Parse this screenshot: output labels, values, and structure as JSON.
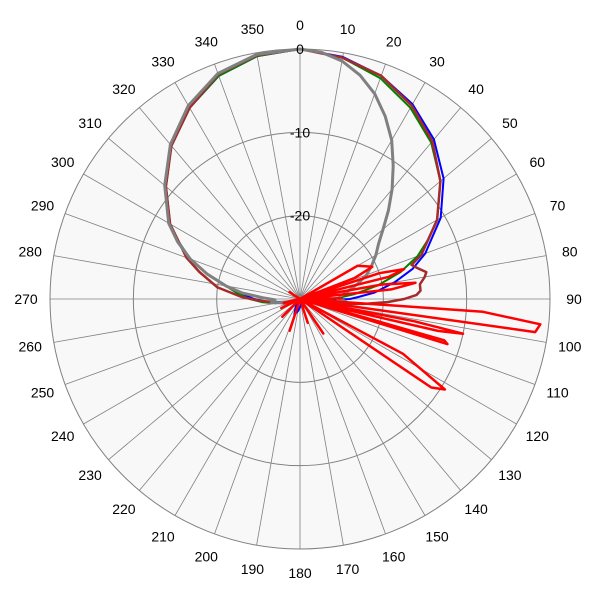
{
  "chart_data": {
    "type": "polar-line",
    "title": "",
    "angle_unit": "degrees",
    "angle_direction": "clockwise",
    "angle_zero": "top",
    "radial_unit": "dB",
    "radial_range": [
      -30,
      0
    ],
    "radial_ticks": [
      {
        "value": -10,
        "label": "-10"
      },
      {
        "value": -20,
        "label": "-20"
      },
      {
        "value": 0,
        "label": "0"
      }
    ],
    "angle_ticks": [
      "0",
      "10",
      "20",
      "30",
      "40",
      "50",
      "60",
      "70",
      "80",
      "90",
      "100",
      "110",
      "120",
      "130",
      "140",
      "150",
      "160",
      "170",
      "180",
      "190",
      "200",
      "210",
      "220",
      "230",
      "240",
      "250",
      "260",
      "270",
      "280",
      "290",
      "300",
      "310",
      "320",
      "330",
      "340",
      "350"
    ],
    "grid": true,
    "legend": "none",
    "colors": {
      "background": "#ffffff",
      "plot_fill": "#f8f8f8",
      "grid": "#808080"
    },
    "series": [
      {
        "color": "#0000ff",
        "width": 2,
        "points": [
          [
            0,
            0
          ],
          [
            10,
            -0.5
          ],
          [
            20,
            -1.5
          ],
          [
            30,
            -3
          ],
          [
            40,
            -5
          ],
          [
            50,
            -7.5
          ],
          [
            60,
            -10.5
          ],
          [
            65,
            -12.5
          ],
          [
            70,
            -14
          ],
          [
            75,
            -16
          ],
          [
            80,
            -18.5
          ],
          [
            85,
            -21
          ],
          [
            88,
            -23
          ],
          [
            90,
            -24
          ],
          [
            93,
            -27
          ],
          [
            95,
            -29
          ],
          [
            100,
            -29.5
          ],
          [
            110,
            -29.5
          ],
          [
            130,
            -29.8
          ],
          [
            160,
            -29.5
          ],
          [
            180,
            -29
          ],
          [
            190,
            -28.5
          ],
          [
            200,
            -28
          ],
          [
            210,
            -29
          ],
          [
            220,
            -29.3
          ],
          [
            240,
            -29.5
          ],
          [
            250,
            -29
          ],
          [
            260,
            -28
          ],
          [
            265,
            -26
          ],
          [
            270,
            -24.5
          ],
          [
            275,
            -23
          ],
          [
            280,
            -21
          ],
          [
            285,
            -18.5
          ],
          [
            290,
            -16
          ],
          [
            295,
            -14
          ],
          [
            300,
            -12
          ],
          [
            310,
            -9
          ],
          [
            320,
            -6
          ],
          [
            330,
            -3.5
          ],
          [
            340,
            -1.5
          ],
          [
            350,
            -0.4
          ],
          [
            360,
            0
          ]
        ]
      },
      {
        "color": "#008000",
        "width": 2,
        "points": [
          [
            0,
            0
          ],
          [
            10,
            -0.6
          ],
          [
            20,
            -1.8
          ],
          [
            30,
            -3.5
          ],
          [
            40,
            -5.5
          ],
          [
            50,
            -8
          ],
          [
            60,
            -11
          ],
          [
            65,
            -13
          ],
          [
            70,
            -15
          ],
          [
            75,
            -17.5
          ],
          [
            80,
            -20.5
          ],
          [
            85,
            -23.5
          ],
          [
            90,
            -26
          ],
          [
            95,
            -28
          ],
          [
            100,
            -29
          ],
          [
            120,
            -29.5
          ],
          [
            160,
            -29.8
          ],
          [
            200,
            -29.6
          ],
          [
            240,
            -29.5
          ],
          [
            255,
            -28.5
          ],
          [
            260,
            -27
          ],
          [
            265,
            -25.5
          ],
          [
            270,
            -24
          ],
          [
            275,
            -22.5
          ],
          [
            280,
            -21
          ],
          [
            285,
            -18.5
          ],
          [
            290,
            -16
          ],
          [
            295,
            -14
          ],
          [
            300,
            -12
          ],
          [
            310,
            -9
          ],
          [
            320,
            -6
          ],
          [
            330,
            -3.5
          ],
          [
            340,
            -1.5
          ],
          [
            350,
            -0.4
          ],
          [
            360,
            0
          ]
        ]
      },
      {
        "color": "#a52a2a",
        "width": 2.5,
        "points": [
          [
            0,
            0
          ],
          [
            10,
            -0.6
          ],
          [
            20,
            -1.5
          ],
          [
            30,
            -3.2
          ],
          [
            40,
            -5.3
          ],
          [
            50,
            -8
          ],
          [
            60,
            -11
          ],
          [
            65,
            -13
          ],
          [
            70,
            -14.5
          ],
          [
            73,
            -16
          ],
          [
            75,
            -15.5
          ],
          [
            78,
            -14.5
          ],
          [
            80,
            -14.8
          ],
          [
            83,
            -15.5
          ],
          [
            86,
            -15.5
          ],
          [
            88,
            -16
          ],
          [
            90,
            -17.5
          ],
          [
            92,
            -19.5
          ],
          [
            94,
            -22
          ],
          [
            97,
            -25
          ],
          [
            100,
            -27.5
          ],
          [
            110,
            -29
          ],
          [
            140,
            -29.5
          ],
          [
            200,
            -29.6
          ],
          [
            240,
            -29.3
          ],
          [
            255,
            -28
          ],
          [
            262,
            -27
          ],
          [
            268,
            -25
          ],
          [
            272,
            -23
          ],
          [
            278,
            -20
          ],
          [
            285,
            -17.5
          ],
          [
            290,
            -15.5
          ],
          [
            300,
            -12
          ],
          [
            310,
            -9
          ],
          [
            320,
            -6
          ],
          [
            330,
            -3.5
          ],
          [
            340,
            -1.3
          ],
          [
            350,
            -0.3
          ],
          [
            360,
            0
          ]
        ]
      },
      {
        "color": "#808080",
        "width": 3,
        "points": [
          [
            0,
            0
          ],
          [
            5,
            -0.3
          ],
          [
            10,
            -1
          ],
          [
            15,
            -2.2
          ],
          [
            20,
            -3.8
          ],
          [
            25,
            -5.8
          ],
          [
            30,
            -8
          ],
          [
            35,
            -10.5
          ],
          [
            40,
            -12.8
          ],
          [
            45,
            -15
          ],
          [
            50,
            -17
          ],
          [
            55,
            -18.5
          ],
          [
            60,
            -19.5
          ],
          [
            65,
            -20.5
          ],
          [
            70,
            -21.5
          ],
          [
            75,
            -22.8
          ],
          [
            80,
            -24
          ],
          [
            85,
            -25
          ],
          [
            90,
            -25.5
          ],
          [
            93,
            -24.5
          ],
          [
            96,
            -26.5
          ],
          [
            100,
            -28.5
          ],
          [
            110,
            -29.5
          ],
          [
            150,
            -29.8
          ],
          [
            220,
            -29.8
          ],
          [
            255,
            -29
          ],
          [
            260,
            -27.5
          ],
          [
            263,
            -26.5
          ],
          [
            268,
            -27
          ],
          [
            272,
            -25.5
          ],
          [
            276,
            -23
          ],
          [
            280,
            -21
          ],
          [
            285,
            -18.5
          ],
          [
            290,
            -16
          ],
          [
            295,
            -13.8
          ],
          [
            300,
            -11.8
          ],
          [
            310,
            -8.8
          ],
          [
            320,
            -5.8
          ],
          [
            330,
            -3.2
          ],
          [
            340,
            -1.2
          ],
          [
            350,
            -0.2
          ],
          [
            360,
            0
          ]
        ]
      },
      {
        "color": "#ff0000",
        "width": 2.5,
        "points": [
          [
            40,
            -30
          ],
          [
            60,
            -22
          ],
          [
            66,
            -20.5
          ],
          [
            69,
            -23
          ],
          [
            70,
            -30
          ],
          [
            72,
            -20
          ],
          [
            74,
            -17
          ],
          [
            76,
            -19
          ],
          [
            78,
            -30
          ],
          [
            80,
            -20
          ],
          [
            82,
            -16
          ],
          [
            84,
            -19
          ],
          [
            86,
            -30
          ],
          [
            89,
            -25
          ],
          [
            92,
            -30
          ],
          [
            94,
            -8
          ],
          [
            96,
            -1
          ],
          [
            98,
            -1.5
          ],
          [
            100,
            -30
          ],
          [
            101,
            -16
          ],
          [
            102,
            -10
          ],
          [
            103,
            -13
          ],
          [
            104,
            -30
          ],
          [
            106,
            -12
          ],
          [
            107,
            -11.5
          ],
          [
            109,
            -30
          ],
          [
            115,
            -30
          ],
          [
            118,
            -16
          ],
          [
            122,
            -9.5
          ],
          [
            124,
            -11
          ],
          [
            126,
            -30
          ],
          [
            140,
            -30
          ],
          [
            146,
            -25
          ],
          [
            150,
            -30
          ],
          [
            160,
            -30
          ],
          [
            162,
            -27
          ],
          [
            166,
            -30
          ],
          [
            195,
            -30
          ],
          [
            198,
            -26
          ],
          [
            202,
            -30
          ],
          [
            220,
            -30
          ],
          [
            225,
            -27
          ],
          [
            230,
            -30
          ],
          [
            240,
            -30
          ],
          [
            244,
            -27.5
          ],
          [
            248,
            -30
          ],
          [
            255,
            -30
          ],
          [
            257,
            -28
          ],
          [
            260,
            -30
          ],
          [
            300,
            -30
          ],
          [
            303,
            -28.5
          ],
          [
            306,
            -30
          ]
        ]
      }
    ]
  }
}
